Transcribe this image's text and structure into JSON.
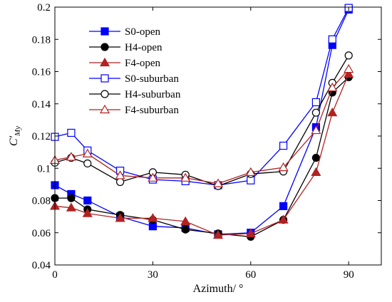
{
  "chart_data": {
    "type": "line",
    "title": "",
    "xlabel": "Azimuth/ °",
    "ylabel": {
      "main": "C′",
      "sub": "My"
    },
    "xlim": [
      0,
      100
    ],
    "ylim": [
      0.04,
      0.2
    ],
    "xticks": [
      0,
      30,
      60,
      90
    ],
    "yticks": [
      0.04,
      0.06,
      0.08,
      0.1,
      0.12,
      0.14,
      0.16,
      0.18,
      0.2
    ],
    "ytick_labels": [
      "0.04",
      "0.06",
      "0.08",
      "0.1",
      "0.12",
      "0.14",
      "0.16",
      "0.18",
      "0.2"
    ],
    "grid": false,
    "legend_position": "top-left",
    "x": [
      0,
      5,
      10,
      20,
      30,
      40,
      50,
      60,
      70,
      80,
      85,
      90
    ],
    "series": [
      {
        "name": "S0-open",
        "color": "#0000ff",
        "marker": "square",
        "filled": true,
        "values": [
          0.0895,
          0.084,
          0.08,
          0.07,
          0.064,
          0.063,
          0.059,
          0.06,
          0.0765,
          0.1255,
          0.1765,
          0.1985
        ]
      },
      {
        "name": "H4-open",
        "color": "#000000",
        "marker": "circle",
        "filled": true,
        "values": [
          0.0815,
          0.0815,
          0.0745,
          0.071,
          0.068,
          0.062,
          0.0595,
          0.0575,
          0.068,
          0.1065,
          0.147,
          0.1565
        ]
      },
      {
        "name": "F4-open",
        "color": "#b22222",
        "marker": "triangle",
        "filled": true,
        "values": [
          0.0765,
          0.0755,
          0.072,
          0.069,
          0.069,
          0.067,
          0.0585,
          0.0595,
          0.068,
          0.0975,
          0.1345,
          0.1585
        ]
      },
      {
        "name": "S0-suburban",
        "color": "#0000ff",
        "marker": "square",
        "filled": false,
        "values": [
          0.1195,
          0.122,
          0.111,
          0.0985,
          0.093,
          0.092,
          0.0895,
          0.0925,
          0.114,
          0.141,
          0.18,
          0.1995
        ]
      },
      {
        "name": "H4-suburban",
        "color": "#000000",
        "marker": "circle",
        "filled": false,
        "values": [
          0.1035,
          0.1065,
          0.103,
          0.0915,
          0.0975,
          0.096,
          0.089,
          0.0965,
          0.098,
          0.1345,
          0.153,
          0.17
        ]
      },
      {
        "name": "F4-suburban",
        "color": "#b22222",
        "marker": "triangle",
        "filled": false,
        "values": [
          0.105,
          0.107,
          0.109,
          0.0955,
          0.094,
          0.094,
          0.0905,
          0.0975,
          0.1005,
          0.1235,
          0.15,
          0.1615
        ]
      }
    ]
  }
}
